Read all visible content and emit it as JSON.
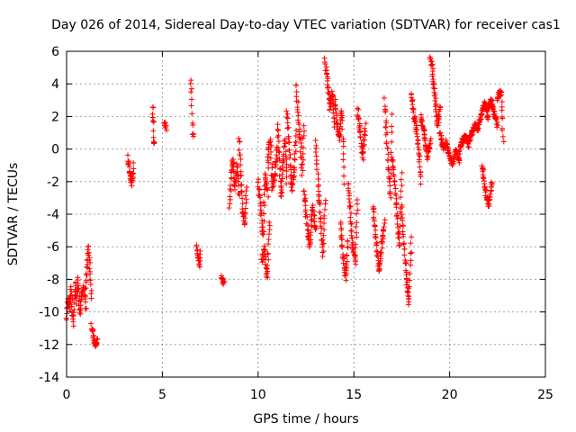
{
  "chart_data": {
    "type": "scatter",
    "title": "Day 026 of 2014, Sidereal Day-to-day VTEC variation (SDTVAR) for receiver cas1",
    "xlabel": "GPS time / hours",
    "ylabel": "SDTVAR / TECUs",
    "xlim": [
      0,
      25
    ],
    "ylim": [
      -14,
      6
    ],
    "xticks": [
      "0",
      "5",
      "10",
      "15",
      "20",
      "25"
    ],
    "yticks": [
      "-14",
      "-12",
      "-10",
      "-8",
      "-6",
      "-4",
      "-2",
      "0",
      "2",
      "4",
      "6"
    ],
    "grid": true,
    "marker": "+",
    "color": "#ff0000",
    "series": [
      {
        "name": "SDTVAR",
        "segments": [
          {
            "x0": 0.0,
            "x1": 0.5,
            "y": [
              -10.5,
              -9.0,
              -9.8,
              -8.5,
              -10.8,
              -9.2,
              -8.2
            ]
          },
          {
            "x0": 0.5,
            "x1": 1.0,
            "y": [
              -9.5,
              -8.0,
              -10.0,
              -9.0,
              -8.5,
              -9.8
            ]
          },
          {
            "x0": 1.0,
            "x1": 1.3,
            "y": [
              -8.5,
              -7.0,
              -6.0,
              -7.5,
              -9.0
            ]
          },
          {
            "x0": 1.3,
            "x1": 1.6,
            "y": [
              -10.8,
              -11.5,
              -12.1,
              -11.8
            ]
          },
          {
            "x0": 3.2,
            "x1": 3.5,
            "y": [
              -0.5,
              -1.2,
              -1.8,
              -2.1,
              -1.0
            ]
          },
          {
            "x0": 4.5,
            "x1": 4.6,
            "y": [
              2.7,
              2.0,
              1.5,
              0.5,
              0.3
            ]
          },
          {
            "x0": 5.1,
            "x1": 5.2,
            "y": [
              1.6,
              1.3
            ]
          },
          {
            "x0": 6.5,
            "x1": 6.6,
            "y": [
              4.3,
              3.5,
              2.1,
              1.0,
              0.8
            ]
          },
          {
            "x0": 6.8,
            "x1": 7.0,
            "y": [
              -6.0,
              -6.6,
              -7.1,
              -6.3
            ]
          },
          {
            "x0": 8.1,
            "x1": 8.2,
            "y": [
              -7.8,
              -8.3
            ]
          },
          {
            "x0": 8.5,
            "x1": 9.0,
            "y": [
              -3.5,
              -1.5,
              -0.5,
              -2.5,
              -1.0,
              -3.0
            ]
          },
          {
            "x0": 9.0,
            "x1": 9.4,
            "y": [
              0.8,
              -1.5,
              -3.8,
              -4.5,
              -2.5
            ]
          },
          {
            "x0": 10.0,
            "x1": 10.5,
            "y": [
              -2.0,
              -3.5,
              -5.5,
              -1.5,
              -2.8
            ]
          },
          {
            "x0": 10.2,
            "x1": 10.6,
            "y": [
              -7.0,
              -6.0,
              -8.0,
              -4.5
            ]
          },
          {
            "x0": 10.5,
            "x1": 11.0,
            "y": [
              -1.0,
              0.8,
              -2.5,
              -1.5,
              0.0
            ]
          },
          {
            "x0": 11.0,
            "x1": 11.5,
            "y": [
              1.5,
              -0.5,
              -3.0,
              -1.0,
              0.5,
              -2.0
            ]
          },
          {
            "x0": 11.5,
            "x1": 12.0,
            "y": [
              2.5,
              0.0,
              -2.5,
              -1.5,
              1.0
            ]
          },
          {
            "x0": 12.0,
            "x1": 12.4,
            "y": [
              4.0,
              2.0,
              0.5,
              -1.5,
              1.5
            ]
          },
          {
            "x0": 12.4,
            "x1": 13.0,
            "y": [
              -2.5,
              -4.5,
              -6.0,
              -3.5,
              -5.0
            ]
          },
          {
            "x0": 13.0,
            "x1": 13.5,
            "y": [
              0.5,
              -2.0,
              -4.0,
              -6.5,
              -3.0
            ]
          },
          {
            "x0": 13.5,
            "x1": 14.0,
            "y": [
              5.5,
              4.0,
              2.5,
              3.5,
              1.5
            ]
          },
          {
            "x0": 14.0,
            "x1": 14.5,
            "y": [
              3.0,
              1.5,
              0.5,
              2.5,
              -2.0
            ]
          },
          {
            "x0": 14.3,
            "x1": 14.7,
            "y": [
              -4.5,
              -6.5,
              -8.0,
              -5.5
            ]
          },
          {
            "x0": 14.7,
            "x1": 15.2,
            "y": [
              -2.0,
              -4.0,
              -6.0,
              -7.0,
              -3.0
            ]
          },
          {
            "x0": 15.2,
            "x1": 15.6,
            "y": [
              2.5,
              1.0,
              -0.5,
              1.5
            ]
          },
          {
            "x0": 16.0,
            "x1": 16.6,
            "y": [
              -3.5,
              -5.5,
              -7.5,
              -6.0,
              -4.5
            ]
          },
          {
            "x0": 16.6,
            "x1": 17.0,
            "y": [
              3.0,
              1.0,
              -1.0,
              -3.0,
              2.0
            ]
          },
          {
            "x0": 17.0,
            "x1": 17.5,
            "y": [
              -0.5,
              -2.0,
              -4.0,
              -6.0,
              -1.5
            ]
          },
          {
            "x0": 17.5,
            "x1": 18.0,
            "y": [
              -3.5,
              -6.0,
              -8.0,
              -9.5,
              -5.5
            ]
          },
          {
            "x0": 18.0,
            "x1": 18.5,
            "y": [
              3.5,
              2.0,
              1.5,
              0.0,
              -2.0
            ]
          },
          {
            "x0": 18.5,
            "x1": 19.0,
            "y": [
              2.0,
              1.0,
              -0.5,
              0.5
            ]
          },
          {
            "x0": 19.0,
            "x1": 19.5,
            "y": [
              5.8,
              4.5,
              3.0,
              1.5,
              2.5
            ]
          },
          {
            "x0": 19.5,
            "x1": 20.0,
            "y": [
              1.0,
              0.0,
              0.5,
              -0.5
            ]
          },
          {
            "x0": 20.0,
            "x1": 20.5,
            "y": [
              -0.5,
              -1.0,
              0.0,
              -0.8
            ]
          },
          {
            "x0": 20.5,
            "x1": 21.0,
            "y": [
              -0.2,
              0.5,
              0.8,
              0.2
            ]
          },
          {
            "x0": 21.0,
            "x1": 21.5,
            "y": [
              0.5,
              1.0,
              1.5,
              1.2
            ]
          },
          {
            "x0": 21.5,
            "x1": 22.0,
            "y": [
              1.5,
              2.2,
              2.8,
              1.8
            ]
          },
          {
            "x0": 21.7,
            "x1": 22.2,
            "y": [
              -1.0,
              -2.5,
              -3.5,
              -2.0
            ]
          },
          {
            "x0": 22.0,
            "x1": 22.5,
            "y": [
              2.5,
              3.0,
              2.2,
              1.5
            ]
          },
          {
            "x0": 22.5,
            "x1": 22.8,
            "y": [
              3.0,
              3.5,
              3.3,
              0.5
            ]
          }
        ]
      }
    ]
  }
}
